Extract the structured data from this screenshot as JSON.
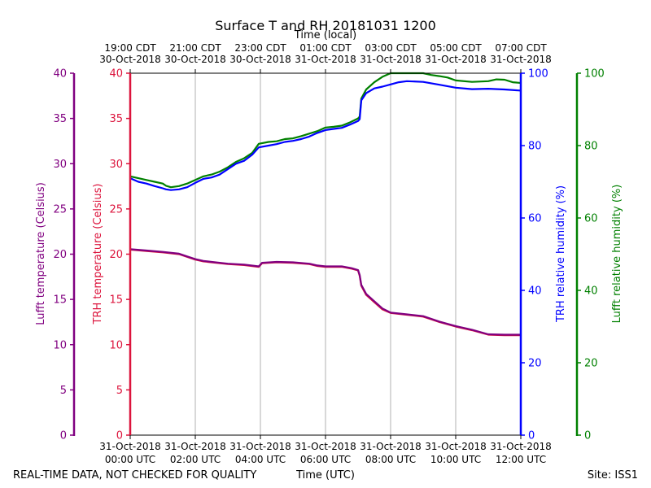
{
  "chart_data": {
    "type": "line",
    "title": "Surface T and RH 20181031 1200",
    "top_axis_label": "Time (local)",
    "bottom_axis_label": "Time (UTC)",
    "footer_left": "REAL-TIME DATA, NOT CHECKED FOR QUALITY",
    "footer_right": "Site: ISS1",
    "x_range_hours_utc": [
      0,
      12
    ],
    "bottom_ticks": [
      {
        "h": 0,
        "line1": "31-Oct-2018",
        "line2": "00:00 UTC"
      },
      {
        "h": 2,
        "line1": "31-Oct-2018",
        "line2": "02:00 UTC"
      },
      {
        "h": 4,
        "line1": "31-Oct-2018",
        "line2": "04:00 UTC"
      },
      {
        "h": 6,
        "line1": "31-Oct-2018",
        "line2": "06:00 UTC"
      },
      {
        "h": 8,
        "line1": "31-Oct-2018",
        "line2": "08:00 UTC"
      },
      {
        "h": 10,
        "line1": "31-Oct-2018",
        "line2": "10:00 UTC"
      },
      {
        "h": 12,
        "line1": "31-Oct-2018",
        "line2": "12:00 UTC"
      }
    ],
    "top_ticks": [
      {
        "h": 0,
        "line1": "19:00 CDT",
        "line2": "30-Oct-2018"
      },
      {
        "h": 2,
        "line1": "21:00 CDT",
        "line2": "30-Oct-2018"
      },
      {
        "h": 4,
        "line1": "23:00 CDT",
        "line2": "30-Oct-2018"
      },
      {
        "h": 6,
        "line1": "01:00 CDT",
        "line2": "31-Oct-2018"
      },
      {
        "h": 8,
        "line1": "03:00 CDT",
        "line2": "31-Oct-2018"
      },
      {
        "h": 10,
        "line1": "05:00 CDT",
        "line2": "31-Oct-2018"
      },
      {
        "h": 12,
        "line1": "07:00 CDT",
        "line2": "31-Oct-2018"
      }
    ],
    "axes": {
      "lufft_temp": {
        "label": "Lufft temperature (Celsius)",
        "range": [
          0,
          40
        ],
        "ticks": [
          0,
          5,
          10,
          15,
          20,
          25,
          30,
          35,
          40
        ],
        "color": "#800080"
      },
      "trh_temp": {
        "label": "TRH temperature (Celsius)",
        "range": [
          0,
          40
        ],
        "ticks": [
          0,
          5,
          10,
          15,
          20,
          25,
          30,
          35,
          40
        ],
        "color": "#dc143c"
      },
      "trh_rh": {
        "label": "TRH relative humidity (%)",
        "range": [
          0,
          100
        ],
        "ticks": [
          0,
          20,
          40,
          60,
          80,
          100
        ],
        "color": "#0000ff"
      },
      "lufft_rh": {
        "label": "Lufft relative humidity (%)",
        "range": [
          0,
          100
        ],
        "ticks": [
          0,
          20,
          40,
          60,
          80,
          100
        ],
        "color": "#008000"
      }
    },
    "series": [
      {
        "name": "Lufft relative humidity",
        "axis": "lufft_rh",
        "color": "#008000",
        "points": [
          [
            0,
            71.5
          ],
          [
            0.25,
            71.0
          ],
          [
            0.5,
            70.5
          ],
          [
            0.75,
            70.0
          ],
          [
            1.0,
            69.5
          ],
          [
            1.1,
            68.9
          ],
          [
            1.25,
            68.5
          ],
          [
            1.5,
            68.8
          ],
          [
            1.75,
            69.5
          ],
          [
            2.0,
            70.5
          ],
          [
            2.25,
            71.5
          ],
          [
            2.5,
            72.0
          ],
          [
            2.75,
            72.8
          ],
          [
            3.0,
            74.0
          ],
          [
            3.25,
            75.5
          ],
          [
            3.5,
            76.5
          ],
          [
            3.75,
            78.0
          ],
          [
            3.95,
            80.5
          ],
          [
            4.25,
            81.0
          ],
          [
            4.5,
            81.2
          ],
          [
            4.75,
            81.8
          ],
          [
            5.0,
            82.0
          ],
          [
            5.25,
            82.6
          ],
          [
            5.5,
            83.3
          ],
          [
            5.75,
            84.0
          ],
          [
            6.0,
            85.0
          ],
          [
            6.25,
            85.2
          ],
          [
            6.5,
            85.5
          ],
          [
            6.75,
            86.4
          ],
          [
            7.0,
            87.5
          ],
          [
            7.05,
            88.0
          ],
          [
            7.1,
            93.0
          ],
          [
            7.25,
            95.5
          ],
          [
            7.5,
            97.5
          ],
          [
            7.75,
            99.0
          ],
          [
            8.0,
            100
          ],
          [
            8.5,
            100
          ],
          [
            9.0,
            100
          ],
          [
            9.25,
            99.5
          ],
          [
            9.5,
            99.2
          ],
          [
            9.75,
            98.8
          ],
          [
            10.0,
            98.0
          ],
          [
            10.5,
            97.6
          ],
          [
            11.0,
            97.8
          ],
          [
            11.25,
            98.3
          ],
          [
            11.5,
            98.2
          ],
          [
            11.75,
            97.5
          ],
          [
            12.0,
            97.3
          ]
        ]
      },
      {
        "name": "TRH relative humidity",
        "axis": "trh_rh",
        "color": "#0000ff",
        "points": [
          [
            0,
            71.0
          ],
          [
            0.25,
            70.0
          ],
          [
            0.5,
            69.5
          ],
          [
            0.75,
            68.8
          ],
          [
            1.0,
            68.2
          ],
          [
            1.1,
            67.9
          ],
          [
            1.25,
            67.7
          ],
          [
            1.5,
            67.9
          ],
          [
            1.75,
            68.5
          ],
          [
            2.0,
            69.7
          ],
          [
            2.25,
            70.8
          ],
          [
            2.5,
            71.2
          ],
          [
            2.75,
            72.0
          ],
          [
            3.0,
            73.5
          ],
          [
            3.25,
            75.0
          ],
          [
            3.5,
            75.8
          ],
          [
            3.75,
            77.5
          ],
          [
            3.95,
            79.5
          ],
          [
            4.25,
            80.0
          ],
          [
            4.5,
            80.4
          ],
          [
            4.75,
            81.0
          ],
          [
            5.0,
            81.3
          ],
          [
            5.25,
            81.8
          ],
          [
            5.5,
            82.5
          ],
          [
            5.75,
            83.5
          ],
          [
            6.0,
            84.3
          ],
          [
            6.25,
            84.6
          ],
          [
            6.5,
            84.9
          ],
          [
            6.75,
            85.8
          ],
          [
            7.0,
            86.8
          ],
          [
            7.05,
            87.3
          ],
          [
            7.1,
            92.5
          ],
          [
            7.25,
            94.5
          ],
          [
            7.5,
            95.8
          ],
          [
            7.75,
            96.3
          ],
          [
            8.0,
            96.9
          ],
          [
            8.25,
            97.5
          ],
          [
            8.5,
            97.8
          ],
          [
            9.0,
            97.6
          ],
          [
            9.5,
            96.8
          ],
          [
            10.0,
            96.0
          ],
          [
            10.5,
            95.6
          ],
          [
            11.0,
            95.7
          ],
          [
            11.5,
            95.5
          ],
          [
            12.0,
            95.2
          ]
        ]
      },
      {
        "name": "TRH temperature",
        "axis": "trh_temp",
        "color": "#dc143c",
        "points": [
          [
            0,
            20.5
          ],
          [
            0.5,
            20.35
          ],
          [
            1.0,
            20.2
          ],
          [
            1.5,
            20.0
          ],
          [
            1.75,
            19.7
          ],
          [
            2.0,
            19.4
          ],
          [
            2.25,
            19.2
          ],
          [
            2.5,
            19.1
          ],
          [
            3.0,
            18.9
          ],
          [
            3.5,
            18.8
          ],
          [
            3.95,
            18.6
          ],
          [
            4.05,
            19.0
          ],
          [
            4.5,
            19.1
          ],
          [
            5.0,
            19.05
          ],
          [
            5.5,
            18.9
          ],
          [
            5.75,
            18.7
          ],
          [
            6.0,
            18.6
          ],
          [
            6.5,
            18.6
          ],
          [
            6.8,
            18.4
          ],
          [
            7.0,
            18.2
          ],
          [
            7.05,
            17.6
          ],
          [
            7.1,
            16.5
          ],
          [
            7.25,
            15.5
          ],
          [
            7.5,
            14.7
          ],
          [
            7.75,
            13.9
          ],
          [
            8.0,
            13.5
          ],
          [
            8.5,
            13.3
          ],
          [
            9.0,
            13.1
          ],
          [
            9.25,
            12.8
          ],
          [
            9.5,
            12.5
          ],
          [
            10.0,
            12.0
          ],
          [
            10.5,
            11.6
          ],
          [
            11.0,
            11.1
          ],
          [
            11.5,
            11.05
          ],
          [
            12.0,
            11.05
          ]
        ]
      },
      {
        "name": "Lufft temperature",
        "axis": "lufft_temp",
        "color": "#800080",
        "points": [
          [
            0,
            20.55
          ],
          [
            0.5,
            20.4
          ],
          [
            1.0,
            20.25
          ],
          [
            1.5,
            20.05
          ],
          [
            1.75,
            19.75
          ],
          [
            2.0,
            19.45
          ],
          [
            2.25,
            19.25
          ],
          [
            2.5,
            19.15
          ],
          [
            3.0,
            18.95
          ],
          [
            3.5,
            18.85
          ],
          [
            3.95,
            18.65
          ],
          [
            4.05,
            19.05
          ],
          [
            4.5,
            19.15
          ],
          [
            5.0,
            19.1
          ],
          [
            5.5,
            18.95
          ],
          [
            5.75,
            18.75
          ],
          [
            6.0,
            18.65
          ],
          [
            6.5,
            18.65
          ],
          [
            6.8,
            18.45
          ],
          [
            7.0,
            18.25
          ],
          [
            7.05,
            17.7
          ],
          [
            7.1,
            16.6
          ],
          [
            7.25,
            15.6
          ],
          [
            7.5,
            14.8
          ],
          [
            7.75,
            14.0
          ],
          [
            8.0,
            13.55
          ],
          [
            8.5,
            13.35
          ],
          [
            9.0,
            13.15
          ],
          [
            9.25,
            12.85
          ],
          [
            9.5,
            12.55
          ],
          [
            10.0,
            12.05
          ],
          [
            10.5,
            11.65
          ],
          [
            11.0,
            11.15
          ],
          [
            11.5,
            11.1
          ],
          [
            12.0,
            11.1
          ]
        ]
      }
    ]
  }
}
